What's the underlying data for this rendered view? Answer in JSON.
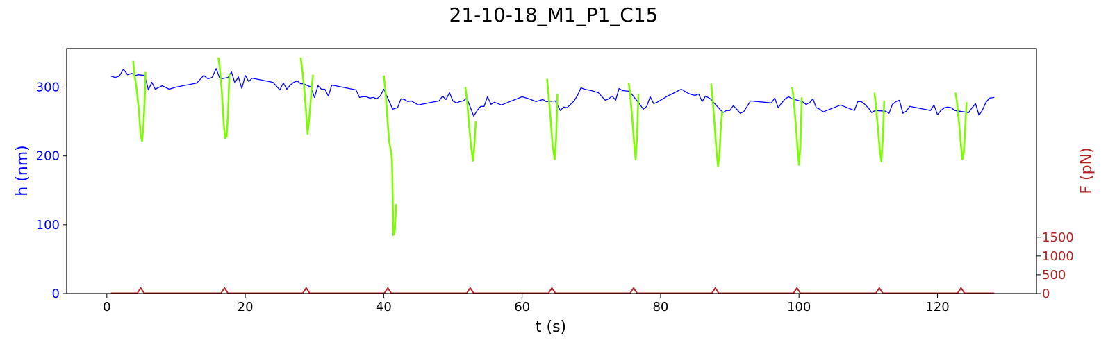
{
  "chart_data": {
    "type": "line",
    "title": "21-10-18_M1_P1_C15",
    "xlabel": "t (s)",
    "ylabel_left": "h (nm)",
    "ylabel_right": "F (pN)",
    "xlim": [
      -5.8,
      134.3
    ],
    "ylim_left": [
      0,
      356
    ],
    "ylim_right": [
      0,
      6520
    ],
    "x_ticks": [
      0,
      20,
      40,
      60,
      80,
      100,
      120
    ],
    "y_ticks_left": [
      0,
      100,
      200,
      300
    ],
    "y_ticks_right": [
      0,
      500,
      1000,
      1500
    ],
    "colors": {
      "height": "#0000ff",
      "indentation": "#7cfc00",
      "force": "#b22222",
      "left_axis": "#0000ff",
      "right_axis": "#b22222"
    },
    "series": [
      {
        "name": "h (nm) baseline",
        "axis": "left",
        "color": "#0000ff",
        "x": [
          0.6,
          1.2,
          1.8,
          2.4,
          3.0,
          3.6,
          4.2,
          4.5,
          5.5,
          6.0,
          6.5,
          7.0,
          8.0,
          9.0,
          10,
          11,
          12,
          13,
          14,
          14.6,
          15.2,
          15.8,
          16.3,
          16.5,
          17.5,
          18.0,
          18.5,
          19.0,
          19.5,
          20.0,
          20.5,
          21.0,
          22,
          23,
          24,
          25,
          25.5,
          26,
          26.5,
          27,
          27.5,
          28,
          28.4,
          29.5,
          30.0,
          30.5,
          31.0,
          31.5,
          32.0,
          32.5,
          33.0,
          34,
          35,
          36,
          36.5,
          37,
          37.5,
          38,
          38.5,
          39,
          39.5,
          40.0,
          41.3,
          42.0,
          42.5,
          43.0,
          43.5,
          44,
          45,
          46,
          47,
          48,
          48.5,
          49,
          49.5,
          50,
          50.5,
          51,
          51.5,
          52.0,
          53.0,
          53.5,
          54,
          54.5,
          55,
          55.5,
          56,
          57,
          58,
          59,
          60,
          61,
          62,
          63,
          63.5,
          64.8,
          65.5,
          66,
          66.5,
          67,
          67.5,
          68,
          68.5,
          69,
          70,
          71,
          72,
          72.5,
          73,
          73.5,
          74,
          74.5,
          75.5,
          77,
          77.5,
          78,
          78.5,
          79,
          79.5,
          80,
          81,
          82,
          83,
          84,
          84.5,
          85,
          85.5,
          86,
          86.5,
          87.2,
          89,
          89.5,
          90,
          90.5,
          91,
          91.5,
          92,
          93,
          94,
          95,
          96,
          96.5,
          97,
          97.5,
          98,
          98.5,
          99.0,
          100.5,
          101,
          101.5,
          102,
          102.5,
          103,
          103.5,
          104,
          105,
          106,
          107,
          108,
          108.5,
          109,
          109.5,
          110,
          110.5,
          111.0,
          112.5,
          113,
          113.5,
          114,
          114.5,
          115,
          115.5,
          116,
          117,
          118,
          119,
          119.5,
          120,
          120.5,
          121,
          121.5,
          122,
          122.5,
          124.5,
          125,
          125.5,
          126,
          126.5,
          127,
          127.5,
          128.2
        ],
        "y": [
          316,
          314,
          316,
          326,
          318,
          320,
          317,
          318,
          317,
          296,
          307,
          297,
          302,
          297,
          300,
          302,
          304,
          306,
          317,
          312,
          314,
          327,
          313,
          312,
          314,
          322,
          306,
          315,
          298,
          317,
          308,
          313,
          311,
          309,
          307,
          296,
          306,
          297,
          303,
          307,
          309,
          305,
          305,
          300,
          285,
          302,
          297,
          297,
          287,
          303,
          302,
          300,
          298,
          296,
          285,
          286,
          286,
          284,
          285,
          283,
          287,
          297,
          268,
          270,
          283,
          282,
          279,
          280,
          274,
          276,
          278,
          280,
          287,
          282,
          292,
          280,
          277,
          279,
          280,
          284,
          258,
          266,
          272,
          272,
          286,
          275,
          278,
          274,
          278,
          282,
          286,
          283,
          279,
          282,
          279,
          280,
          266,
          271,
          270,
          275,
          280,
          288,
          299,
          297,
          295,
          292,
          281,
          283,
          287,
          281,
          298,
          295,
          294,
          275,
          268,
          272,
          286,
          276,
          278,
          281,
          287,
          292,
          297,
          291,
          289,
          288,
          290,
          279,
          287,
          283,
          263,
          266,
          266,
          273,
          268,
          262,
          264,
          280,
          279,
          278,
          277,
          284,
          270,
          277,
          283,
          286,
          283,
          279,
          275,
          277,
          283,
          270,
          268,
          264,
          266,
          270,
          274,
          270,
          266,
          279,
          279,
          275,
          270,
          263,
          266,
          265,
          262,
          275,
          279,
          281,
          262,
          265,
          272,
          270,
          268,
          266,
          274,
          260,
          266,
          270,
          271,
          270,
          266,
          263,
          270,
          276,
          259,
          267,
          278,
          284,
          285
        ]
      },
      {
        "name": "h (nm) indentation",
        "axis": "left",
        "color": "#7cfc00",
        "segments": [
          {
            "x": [
              3.8,
              4.0,
              4.3,
              4.6,
              4.9,
              5.1,
              5.3,
              5.5,
              5.6
            ],
            "y": [
              338,
              318,
              298,
              270,
              230,
              222,
              245,
              290,
              322
            ]
          },
          {
            "x": [
              16.1,
              16.3,
              16.6,
              16.9,
              17.1,
              17.3,
              17.5,
              17.7
            ],
            "y": [
              343,
              330,
              295,
              245,
              226,
              228,
              260,
              320
            ]
          },
          {
            "x": [
              28.0,
              28.2,
              28.5,
              28.8,
              29.0,
              29.3,
              29.6,
              29.8
            ],
            "y": [
              343,
              328,
              300,
              262,
              232,
              260,
              300,
              318
            ]
          },
          {
            "x": [
              40.0,
              40.2,
              40.5,
              40.8,
              41.0,
              41.2,
              41.4,
              41.6,
              41.8
            ],
            "y": [
              317,
              300,
              260,
              220,
              210,
              195,
              85,
              90,
              130
            ]
          },
          {
            "x": [
              51.8,
              52.0,
              52.3,
              52.6,
              52.9,
              53.1,
              53.3
            ],
            "y": [
              300,
              285,
              250,
              215,
              193,
              215,
              250
            ]
          },
          {
            "x": [
              63.6,
              63.8,
              64.1,
              64.4,
              64.7,
              64.9,
              65.1
            ],
            "y": [
              312,
              290,
              255,
              215,
              195,
              225,
              290
            ]
          },
          {
            "x": [
              75.4,
              75.6,
              75.9,
              76.2,
              76.4,
              76.6,
              76.8
            ],
            "y": [
              306,
              290,
              255,
              215,
              195,
              230,
              290
            ]
          },
          {
            "x": [
              87.3,
              87.5,
              87.8,
              88.1,
              88.3,
              88.5,
              88.7,
              88.9
            ],
            "y": [
              305,
              285,
              245,
              205,
              185,
              200,
              240,
              265
            ]
          },
          {
            "x": [
              99.0,
              99.2,
              99.5,
              99.8,
              100.0,
              100.2,
              100.4
            ],
            "y": [
              300,
              285,
              250,
              210,
              187,
              215,
              285
            ]
          },
          {
            "x": [
              110.9,
              111.1,
              111.4,
              111.7,
              111.9,
              112.1,
              112.3
            ],
            "y": [
              292,
              275,
              240,
              205,
              192,
              225,
              280
            ]
          },
          {
            "x": [
              122.6,
              122.8,
              123.1,
              123.4,
              123.6,
              123.8,
              124.0,
              124.2
            ],
            "y": [
              292,
              280,
              250,
              215,
              195,
              205,
              240,
              278
            ]
          }
        ]
      },
      {
        "name": "F (pN)",
        "axis": "right",
        "color": "#b22222",
        "baseline": 10,
        "x_start": 0.6,
        "x_end": 128.2,
        "peaks": [
          {
            "t": 4.9,
            "value": 150
          },
          {
            "t": 17.0,
            "value": 150
          },
          {
            "t": 28.8,
            "value": 150
          },
          {
            "t": 40.6,
            "value": 150
          },
          {
            "t": 52.5,
            "value": 150
          },
          {
            "t": 64.3,
            "value": 150
          },
          {
            "t": 76.1,
            "value": 150
          },
          {
            "t": 87.9,
            "value": 150
          },
          {
            "t": 99.7,
            "value": 150
          },
          {
            "t": 111.6,
            "value": 150
          },
          {
            "t": 123.4,
            "value": 150
          }
        ]
      }
    ]
  }
}
